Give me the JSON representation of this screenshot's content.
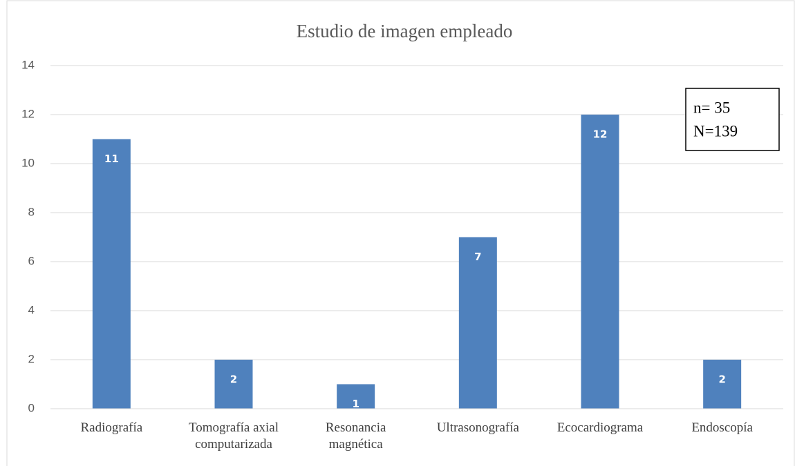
{
  "chart_data": {
    "type": "bar",
    "title": "Estudio de imagen empleado",
    "categories": [
      "Radiografía",
      "Tomografía axial computarizada",
      "Resonancia magnética",
      "Ultrasonografía",
      "Ecocardiograma",
      "Endoscopía"
    ],
    "values": [
      11,
      2,
      1,
      7,
      12,
      2
    ],
    "color": "#4f81bd",
    "ylim": [
      0,
      14
    ],
    "yticks": [
      0,
      2,
      4,
      6,
      8,
      10,
      12,
      14
    ],
    "grid": true,
    "annotations": [
      "n= 35",
      "N=139"
    ]
  }
}
